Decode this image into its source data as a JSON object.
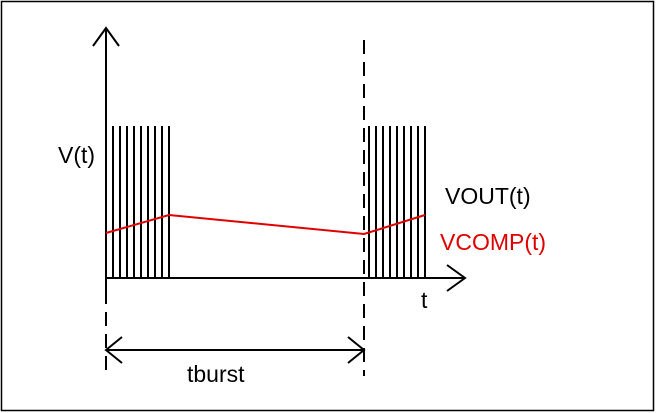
{
  "labels": {
    "y_axis": "V(t)",
    "x_axis": "t",
    "vout": "VOUT(t)",
    "vcomp": "VCOMP(t)",
    "period": "tburst"
  }
}
